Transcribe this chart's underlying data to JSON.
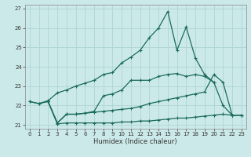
{
  "bg_color": "#cce9e9",
  "grid_color": "#aed4d4",
  "line_color": "#1a6b5a",
  "xlabel": "Humidex (Indice chaleur)",
  "xlim": [
    -0.5,
    23.5
  ],
  "ylim": [
    20.8,
    27.2
  ],
  "yticks": [
    21,
    22,
    23,
    24,
    25,
    26,
    27
  ],
  "xticks": [
    0,
    1,
    2,
    3,
    4,
    5,
    6,
    7,
    8,
    9,
    10,
    11,
    12,
    13,
    14,
    15,
    16,
    17,
    18,
    19,
    20,
    21,
    22,
    23
  ],
  "line1_x": [
    0,
    1,
    2,
    3,
    4,
    5,
    6,
    7,
    8,
    9,
    10,
    11,
    12,
    13,
    14,
    15,
    16,
    17,
    18,
    19,
    20,
    21,
    22,
    23
  ],
  "line1_y": [
    22.2,
    22.1,
    22.25,
    22.65,
    22.8,
    23.0,
    23.15,
    23.3,
    23.6,
    23.7,
    24.2,
    24.5,
    24.85,
    25.5,
    26.0,
    26.85,
    24.85,
    26.05,
    24.45,
    23.6,
    23.2,
    22.0,
    21.5,
    21.5
  ],
  "line2_x": [
    2,
    3,
    4,
    5,
    6,
    7,
    8,
    9,
    10,
    11,
    12,
    13,
    14,
    15,
    16,
    17,
    18,
    19,
    20
  ],
  "line2_y": [
    22.2,
    21.1,
    21.55,
    21.55,
    21.6,
    21.7,
    22.5,
    22.6,
    22.8,
    23.3,
    23.3,
    23.3,
    23.5,
    23.6,
    23.65,
    23.5,
    23.6,
    23.5,
    23.2
  ],
  "line3_x": [
    0,
    1,
    2,
    3,
    4,
    5,
    6,
    7,
    8,
    9,
    10,
    11,
    12,
    13,
    14,
    15,
    16,
    17,
    18,
    19,
    20,
    21,
    22,
    23
  ],
  "line3_y": [
    22.2,
    22.1,
    22.2,
    21.1,
    21.55,
    21.55,
    21.6,
    21.65,
    21.7,
    21.75,
    21.8,
    21.85,
    21.95,
    22.1,
    22.2,
    22.3,
    22.4,
    22.5,
    22.6,
    22.7,
    23.6,
    23.2,
    21.5,
    21.5
  ],
  "line4_x": [
    2,
    3,
    4,
    5,
    6,
    7,
    8,
    9,
    10,
    11,
    12,
    13,
    14,
    15,
    16,
    17,
    18,
    19,
    20,
    21,
    22,
    23
  ],
  "line4_y": [
    22.2,
    21.05,
    21.1,
    21.1,
    21.1,
    21.1,
    21.1,
    21.1,
    21.15,
    21.15,
    21.2,
    21.2,
    21.25,
    21.3,
    21.35,
    21.35,
    21.4,
    21.45,
    21.5,
    21.55,
    21.5,
    21.5
  ]
}
